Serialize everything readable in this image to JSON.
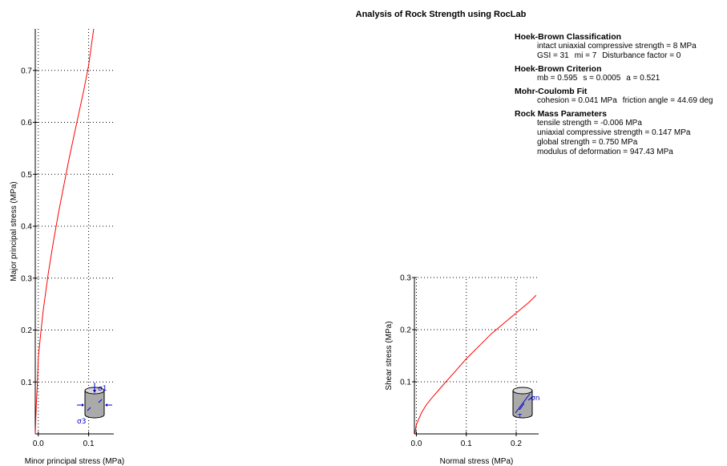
{
  "title": "Analysis of Rock Strength using RocLab",
  "parameters": [
    {
      "title": "Hoek-Brown Classification",
      "lines": [
        [
          "intact uniaxial compressive strength = 8 MPa"
        ],
        [
          "GSI = 31",
          "mi = 7",
          "Disturbance factor = 0"
        ]
      ]
    },
    {
      "title": "Hoek-Brown Criterion",
      "lines": [
        [
          "mb = 0.595",
          "s = 0.0005",
          "a = 0.521"
        ]
      ]
    },
    {
      "title": "Mohr-Coulomb Fit",
      "lines": [
        [
          "cohesion = 0.041 MPa",
          "friction angle = 44.69 deg"
        ]
      ]
    },
    {
      "title": "Rock Mass Parameters",
      "lines": [
        [
          "tensile strength = -0.006 MPa"
        ],
        [
          "uniaxial compressive strength = 0.147 MPa"
        ],
        [
          "global strength = 0.750 MPa"
        ],
        [
          "modulus of deformation = 947.43 MPa"
        ]
      ]
    }
  ],
  "colors": {
    "curve": "#ff0000",
    "icon": "#0000cc",
    "axis": "#000000",
    "grid": "#000000"
  },
  "chart_data": [
    {
      "type": "line",
      "xlabel": "Minor principal stress (MPa)",
      "ylabel": "Major principal stress (MPa)",
      "xlim": [
        -0.006,
        0.15
      ],
      "ylim": [
        0,
        0.78
      ],
      "xticks": [
        0.0,
        0.1
      ],
      "yticks": [
        0.1,
        0.2,
        0.3,
        0.4,
        0.5,
        0.6,
        0.7
      ],
      "grid": true,
      "icon": "triaxial-cylinder-icon",
      "icon_labels": [
        "σ1",
        "σ3"
      ],
      "series": [
        {
          "x": [
            -0.006,
            -0.004,
            -0.002,
            0.0,
            0.005,
            0.01,
            0.02,
            0.03,
            0.04,
            0.05,
            0.06,
            0.07,
            0.08,
            0.09,
            0.1,
            0.11
          ],
          "y": [
            0.0,
            0.057,
            0.093,
            0.147,
            0.195,
            0.24,
            0.31,
            0.37,
            0.425,
            0.475,
            0.525,
            0.57,
            0.615,
            0.66,
            0.71,
            0.78
          ]
        }
      ]
    },
    {
      "type": "line",
      "xlabel": "Normal stress (MPa)",
      "ylabel": "Shear stress (MPa)",
      "xlim": [
        -0.004,
        0.245
      ],
      "ylim": [
        0,
        0.3
      ],
      "xticks": [
        0.0,
        0.1,
        0.2
      ],
      "yticks": [
        0.1,
        0.2,
        0.3
      ],
      "grid": true,
      "icon": "shear-cylinder-icon",
      "icon_labels": [
        "σn",
        "τ"
      ],
      "series": [
        {
          "x": [
            -0.003,
            0.0,
            0.01,
            0.02,
            0.03,
            0.05,
            0.075,
            0.1,
            0.125,
            0.15,
            0.175,
            0.2,
            0.225,
            0.24
          ],
          "y": [
            0.0,
            0.018,
            0.04,
            0.056,
            0.068,
            0.09,
            0.117,
            0.144,
            0.168,
            0.192,
            0.212,
            0.232,
            0.252,
            0.266
          ]
        }
      ]
    }
  ]
}
